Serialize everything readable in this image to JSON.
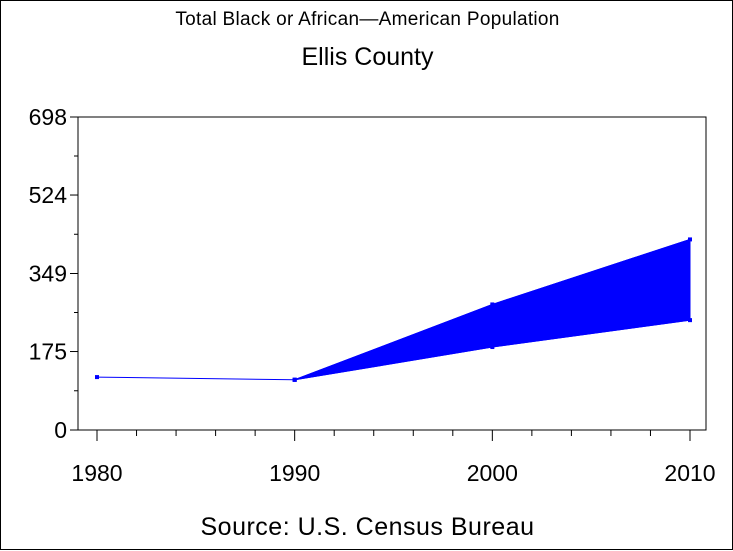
{
  "chart_data": {
    "type": "area",
    "title": "Total Black or African—American Population",
    "subtitle": "Ellis County",
    "source": "Source: U.S. Census Bureau",
    "x": [
      1980,
      1990,
      2000,
      2010
    ],
    "x_tick_labels": [
      "1980",
      "1990",
      "2000",
      "2010"
    ],
    "y_tick_values": [
      0,
      175,
      349,
      524,
      698
    ],
    "y_tick_labels": [
      "0",
      "175",
      "349",
      "524",
      "698"
    ],
    "xlim": [
      1980,
      2010
    ],
    "ylim": [
      0,
      698
    ],
    "grid": false,
    "series": [
      {
        "values": [
          118,
          112,
          null,
          null
        ]
      },
      {
        "values": [
          null,
          112,
          280,
          425
        ]
      },
      {
        "values": [
          null,
          112,
          185,
          245
        ]
      }
    ],
    "fill_between": {
      "x": [
        1990,
        2000,
        2010
      ],
      "upper": [
        112,
        280,
        425
      ],
      "lower": [
        112,
        185,
        245
      ]
    },
    "colors": {
      "series": "#0000ff",
      "axis": "#000000"
    }
  }
}
